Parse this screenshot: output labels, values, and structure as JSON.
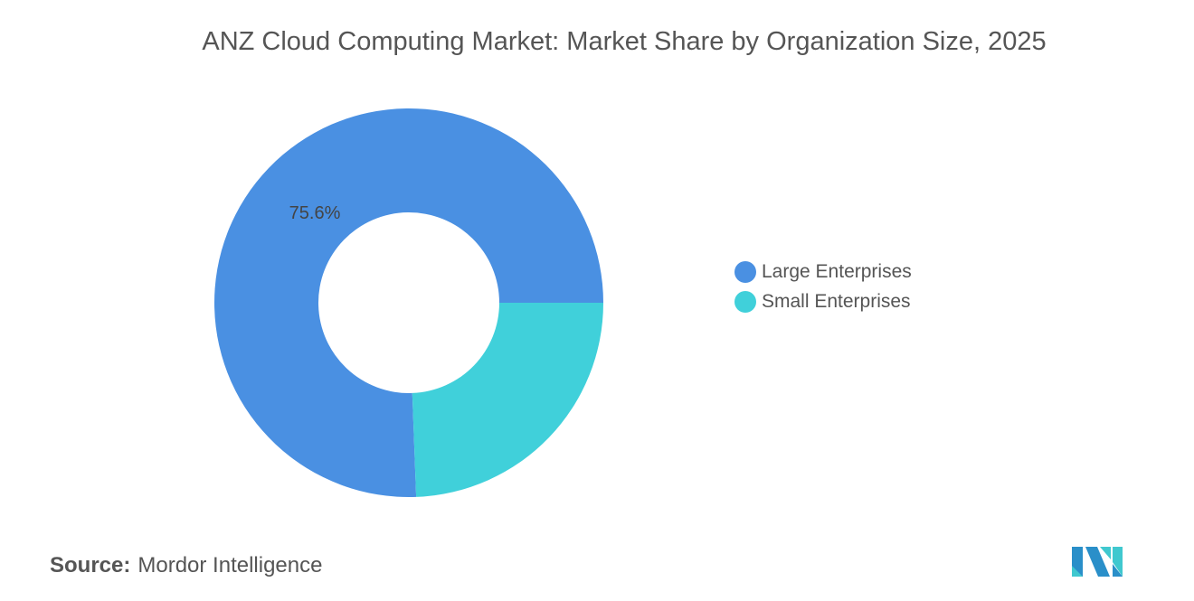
{
  "chart_data": {
    "type": "pie",
    "subtype": "donut",
    "title": "ANZ Cloud Computing Market: Market Share by Organization Size, 2025",
    "categories": [
      "Large Enterprises",
      "Small Enterprises"
    ],
    "values": [
      75.6,
      24.4
    ],
    "data_labels": [
      "75.6%",
      ""
    ],
    "colors": [
      "#4a90e2",
      "#40d0da"
    ],
    "legend_placement": "right"
  },
  "source": {
    "label": "Source:",
    "value": "Mordor Intelligence"
  },
  "logo": {
    "text": "Mordor Intelligence",
    "colors": [
      "#2a8fc9",
      "#40c8cf"
    ]
  }
}
